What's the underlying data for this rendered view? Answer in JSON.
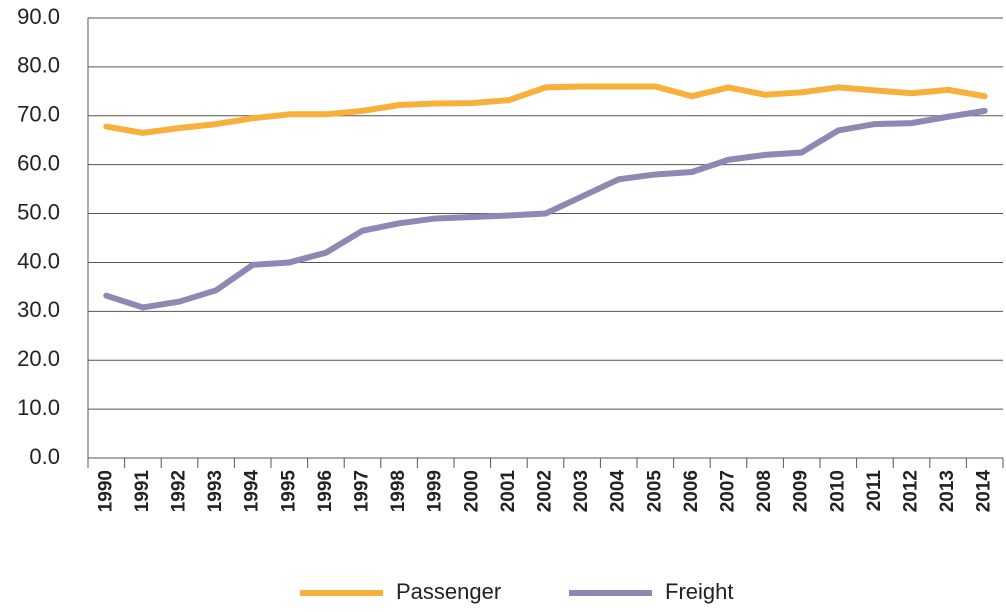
{
  "chart_data": {
    "type": "line",
    "categories": [
      "1990",
      "1991",
      "1992",
      "1993",
      "1994",
      "1995",
      "1996",
      "1997",
      "1998",
      "1999",
      "2000",
      "2001",
      "2002",
      "2003",
      "2004",
      "2005",
      "2006",
      "2007",
      "2008",
      "2009",
      "2010",
      "2011",
      "2012",
      "2013",
      "2014"
    ],
    "series": [
      {
        "name": "Passenger",
        "color": "#f7b13a",
        "values": [
          67.8,
          66.5,
          67.5,
          68.3,
          69.5,
          70.3,
          70.3,
          71.0,
          72.2,
          72.5,
          72.6,
          73.2,
          75.8,
          76.0,
          76.0,
          76.0,
          74.0,
          75.8,
          74.3,
          74.8,
          75.8,
          75.2,
          74.6,
          75.3,
          74.0
        ]
      },
      {
        "name": "Freight",
        "color": "#8c89b5",
        "values": [
          33.2,
          30.8,
          32.0,
          34.3,
          39.5,
          40.0,
          42.0,
          46.5,
          48.0,
          49.0,
          49.3,
          49.6,
          50.0,
          53.5,
          57.0,
          58.0,
          58.5,
          61.0,
          62.0,
          62.5,
          67.0,
          68.3,
          68.5,
          69.8,
          71.0
        ]
      }
    ],
    "ylim": [
      0,
      90
    ],
    "yticks": [
      {
        "value": 0,
        "label": "0.0"
      },
      {
        "value": 10,
        "label": "10.0"
      },
      {
        "value": 20,
        "label": "20.0"
      },
      {
        "value": 30,
        "label": "30.0"
      },
      {
        "value": 40,
        "label": "40.0"
      },
      {
        "value": 50,
        "label": "50.0"
      },
      {
        "value": 60,
        "label": "60.0"
      },
      {
        "value": 70,
        "label": "70.0"
      },
      {
        "value": 80,
        "label": "80.0"
      },
      {
        "value": 90,
        "label": "90.0"
      }
    ],
    "grid": true,
    "legend": "bottom"
  }
}
